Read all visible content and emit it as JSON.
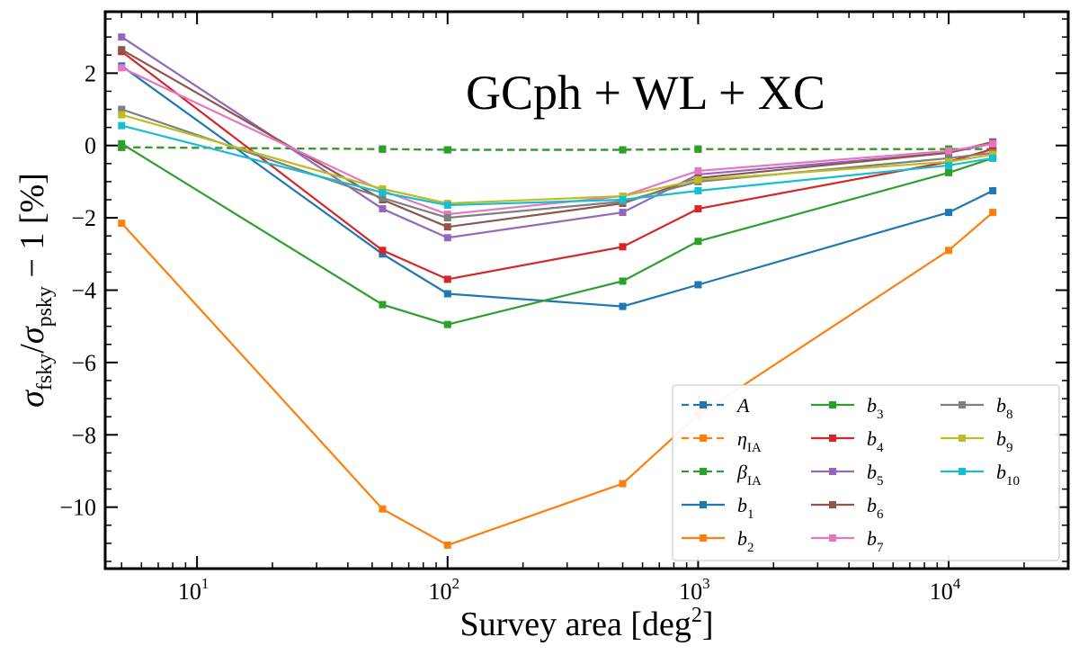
{
  "chart_data": {
    "type": "line",
    "x_scale": "log",
    "xlabel": {
      "main": "Survey area [deg",
      "sup": "2",
      "end": "]"
    },
    "ylabel": {
      "sigma1": "σ",
      "sub1": "fsky",
      "slash": "/",
      "sigma2": "σ",
      "sub2": "psky",
      "rest": " − 1 [%]"
    },
    "annotation": "GCph + WL + XC",
    "xlim": [
      4.3,
      30000
    ],
    "ylim": [
      -11.7,
      3.7
    ],
    "x_ticks": [
      {
        "value": 10,
        "base": "10",
        "exp": "1"
      },
      {
        "value": 100,
        "base": "10",
        "exp": "2"
      },
      {
        "value": 1000,
        "base": "10",
        "exp": "3"
      },
      {
        "value": 10000,
        "base": "10",
        "exp": "4"
      }
    ],
    "y_ticks": [
      {
        "value": 2,
        "label": "2"
      },
      {
        "value": 0,
        "label": "0"
      },
      {
        "value": -2,
        "label": "−2"
      },
      {
        "value": -4,
        "label": "−4"
      },
      {
        "value": -6,
        "label": "−6"
      },
      {
        "value": -8,
        "label": "−8"
      },
      {
        "value": -10,
        "label": "−10"
      }
    ],
    "x": [
      5,
      55,
      100,
      500,
      1000,
      10000,
      15000
    ],
    "series": [
      {
        "name": "A",
        "sym": "A",
        "sub": "",
        "color": "#1f77b4",
        "dashed": true,
        "values": [
          -0.05,
          -0.1,
          -0.12,
          -0.12,
          -0.1,
          -0.1,
          -0.1
        ]
      },
      {
        "name": "eta_IA",
        "sym": "η",
        "sub": "IA",
        "color": "#ff7f0e",
        "dashed": true,
        "values": [
          -0.05,
          -0.1,
          -0.12,
          -0.12,
          -0.1,
          -0.1,
          -0.1
        ]
      },
      {
        "name": "beta_IA",
        "sym": "β",
        "sub": "IA",
        "color": "#2ca02c",
        "dashed": true,
        "values": [
          -0.05,
          -0.1,
          -0.12,
          -0.12,
          -0.1,
          -0.1,
          -0.1
        ]
      },
      {
        "name": "b1",
        "sym": "b",
        "sub": "1",
        "color": "#1f77b4",
        "dashed": false,
        "values": [
          2.2,
          -3.0,
          -4.1,
          -4.45,
          -3.85,
          -1.85,
          -1.25
        ]
      },
      {
        "name": "b2",
        "sym": "b",
        "sub": "2",
        "color": "#ff7f0e",
        "dashed": false,
        "values": [
          -2.15,
          -10.05,
          -11.05,
          -9.35,
          -7.45,
          -2.9,
          -1.85
        ]
      },
      {
        "name": "b3",
        "sym": "b",
        "sub": "3",
        "color": "#2ca02c",
        "dashed": false,
        "values": [
          0.05,
          -4.4,
          -4.95,
          -3.75,
          -2.65,
          -0.75,
          -0.35
        ]
      },
      {
        "name": "b4",
        "sym": "b",
        "sub": "4",
        "color": "#d62728",
        "dashed": false,
        "values": [
          2.6,
          -2.9,
          -3.7,
          -2.8,
          -1.75,
          -0.45,
          -0.1
        ]
      },
      {
        "name": "b5",
        "sym": "b",
        "sub": "5",
        "color": "#9467bd",
        "dashed": false,
        "values": [
          3.0,
          -1.75,
          -2.55,
          -1.85,
          -0.8,
          -0.2,
          0.05
        ]
      },
      {
        "name": "b6",
        "sym": "b",
        "sub": "6",
        "color": "#8c564b",
        "dashed": false,
        "values": [
          2.65,
          -1.5,
          -2.25,
          -1.6,
          -0.9,
          -0.2,
          0.1
        ]
      },
      {
        "name": "b7",
        "sym": "b",
        "sub": "7",
        "color": "#e377c2",
        "dashed": false,
        "values": [
          2.15,
          -1.25,
          -1.9,
          -1.4,
          -0.7,
          -0.15,
          0.05
        ]
      },
      {
        "name": "b8",
        "sym": "b",
        "sub": "8",
        "color": "#7f7f7f",
        "dashed": false,
        "values": [
          1.0,
          -1.45,
          -2.0,
          -1.55,
          -1.0,
          -0.35,
          -0.2
        ]
      },
      {
        "name": "b9",
        "sym": "b",
        "sub": "9",
        "color": "#bcbd22",
        "dashed": false,
        "values": [
          0.85,
          -1.2,
          -1.6,
          -1.4,
          -0.95,
          -0.45,
          -0.25
        ]
      },
      {
        "name": "b10",
        "sym": "b",
        "sub": "10",
        "color": "#17becf",
        "dashed": false,
        "values": [
          0.55,
          -1.3,
          -1.65,
          -1.5,
          -1.25,
          -0.55,
          -0.35
        ]
      }
    ],
    "legend": {
      "position": "lower-right",
      "columns": 3
    }
  }
}
